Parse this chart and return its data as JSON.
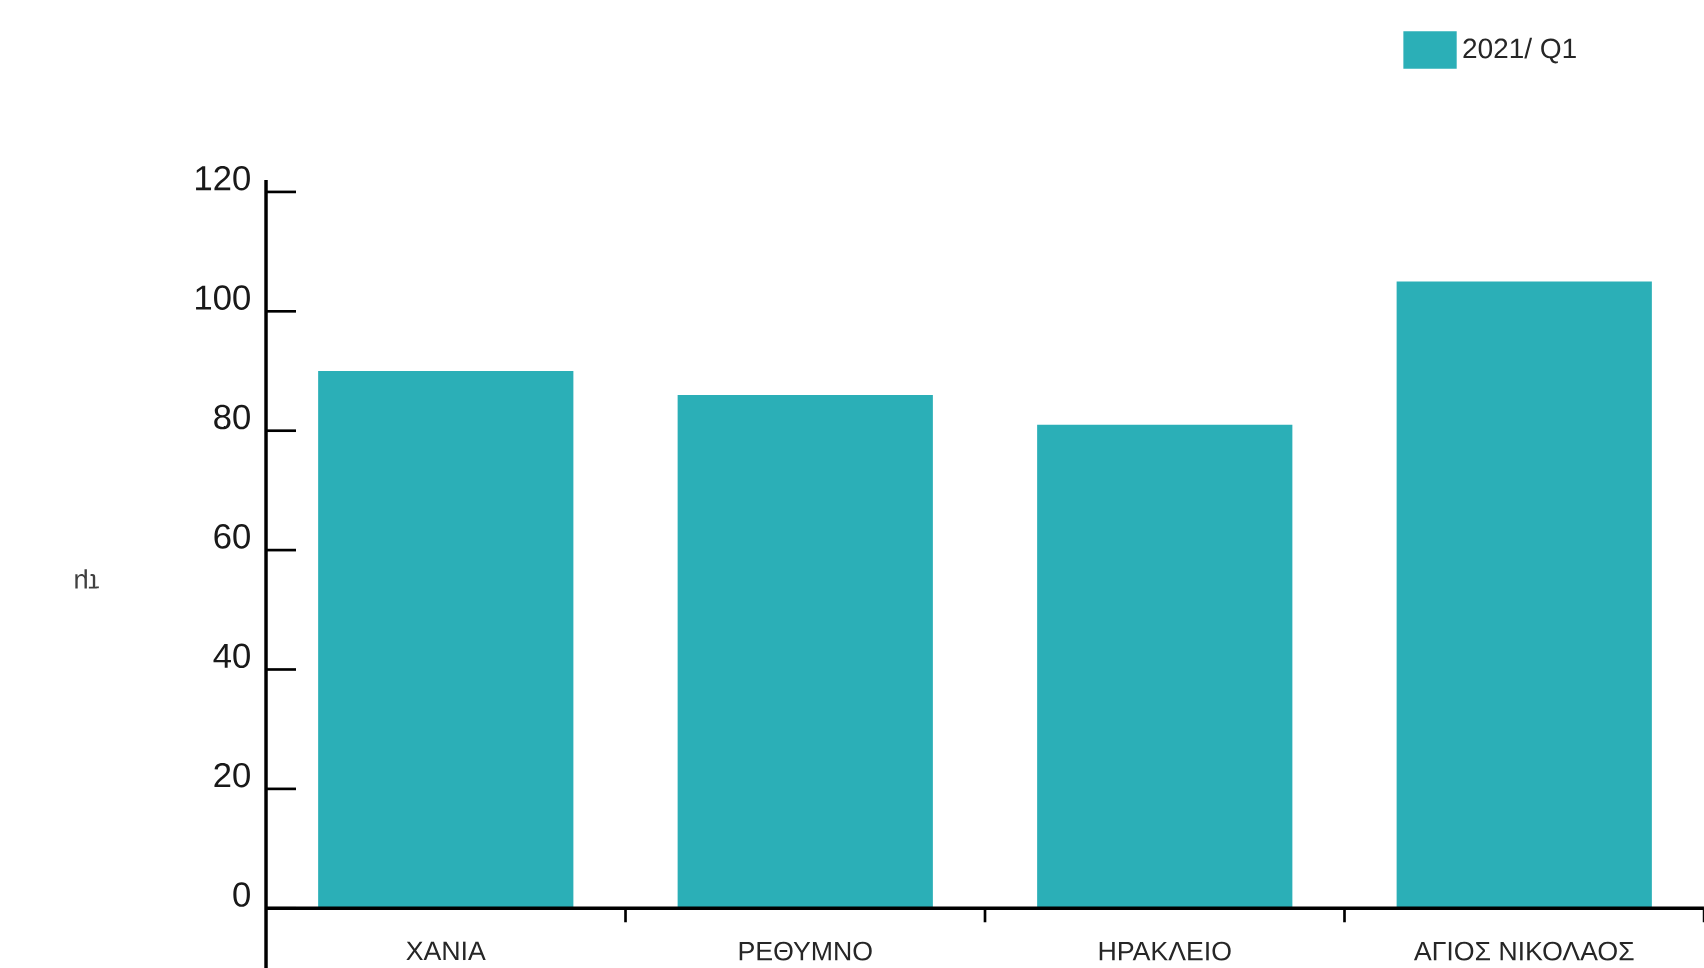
{
  "chart_data": {
    "type": "bar",
    "ylabel": "τμ",
    "categories": [
      "ΧΑΝΙΑ",
      "ΡΕΘΥΜΝΟ",
      "ΗΡΑΚΛΕΙΟ",
      "ΑΓΙΟΣ ΝΙΚΟΛΑΟΣ"
    ],
    "series": [
      {
        "name": "2021/ Q1",
        "color": "#2bafb7",
        "values": [
          90,
          86,
          81,
          105
        ]
      }
    ],
    "ylim": [
      -10,
      122
    ],
    "yticks": [
      0,
      20,
      40,
      60,
      80,
      100,
      120
    ],
    "legend": "top right"
  }
}
